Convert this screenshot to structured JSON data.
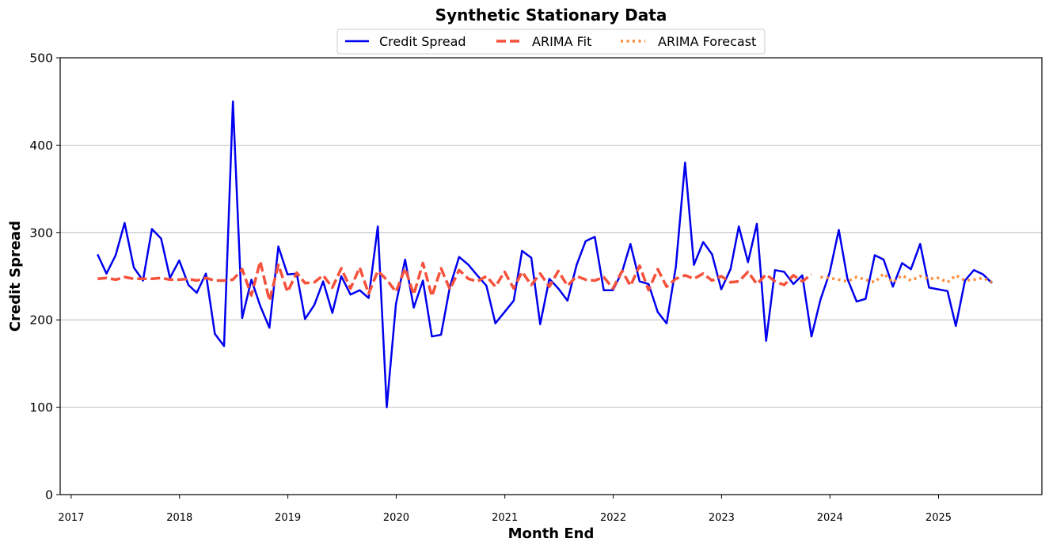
{
  "chart_data": {
    "type": "line",
    "title": "Synthetic Stationary Data",
    "xlabel": "Month End",
    "ylabel": "Credit Spread",
    "ylim": [
      0,
      500
    ],
    "yticks": [
      0,
      100,
      200,
      300,
      400,
      500
    ],
    "xlim": [
      "2016-11-25",
      "2025-12-15"
    ],
    "xticks": [
      "2017",
      "2018",
      "2019",
      "2020",
      "2021",
      "2022",
      "2023",
      "2024",
      "2025"
    ],
    "grid": "horizontal",
    "legend": "top-center",
    "series": [
      {
        "name": "Credit Spread",
        "color": "#0000ee",
        "style": "solid",
        "x": [
          "2017-03-31",
          "2017-04-30",
          "2017-05-31",
          "2017-06-30",
          "2017-07-31",
          "2017-08-31",
          "2017-09-30",
          "2017-10-31",
          "2017-11-30",
          "2017-12-31",
          "2018-01-31",
          "2018-02-28",
          "2018-03-31",
          "2018-04-30",
          "2018-05-31",
          "2018-06-30",
          "2018-07-31",
          "2018-08-31",
          "2018-09-30",
          "2018-10-31",
          "2018-11-30",
          "2018-12-31",
          "2019-01-31",
          "2019-02-28",
          "2019-03-31",
          "2019-04-30",
          "2019-05-31",
          "2019-06-30",
          "2019-07-31",
          "2019-08-31",
          "2019-09-30",
          "2019-10-31",
          "2019-11-30",
          "2019-12-31",
          "2020-01-31",
          "2020-02-29",
          "2020-03-31",
          "2020-04-30",
          "2020-05-31",
          "2020-06-30",
          "2020-07-31",
          "2020-08-31",
          "2020-09-30",
          "2020-10-31",
          "2020-11-30",
          "2020-12-31",
          "2021-01-31",
          "2021-02-28",
          "2021-03-31",
          "2021-04-30",
          "2021-05-31",
          "2021-06-30",
          "2021-07-31",
          "2021-08-31",
          "2021-09-30",
          "2021-10-31",
          "2021-11-30",
          "2021-12-31",
          "2022-01-31",
          "2022-02-28",
          "2022-03-31",
          "2022-04-30",
          "2022-05-31",
          "2022-06-30",
          "2022-07-31",
          "2022-08-31",
          "2022-09-30",
          "2022-10-31",
          "2022-11-30",
          "2022-12-31",
          "2023-01-31",
          "2023-02-28",
          "2023-03-31",
          "2023-04-30",
          "2023-05-31",
          "2023-06-30",
          "2023-07-31",
          "2023-08-31",
          "2023-09-30",
          "2023-10-31",
          "2023-11-30",
          "2023-12-31",
          "2024-01-31",
          "2024-02-29",
          "2024-03-31",
          "2024-04-30",
          "2024-05-31",
          "2024-06-30",
          "2024-07-31",
          "2024-08-31",
          "2024-09-30",
          "2024-10-31",
          "2024-11-30",
          "2024-12-31",
          "2025-01-31",
          "2025-02-28",
          "2025-03-31",
          "2025-04-30",
          "2025-05-31",
          "2025-06-30"
        ],
        "values": [
          275,
          253,
          274,
          311,
          260,
          245,
          304,
          293,
          248,
          268,
          240,
          231,
          253,
          184,
          170,
          450,
          202,
          246,
          216,
          191,
          284,
          252,
          253,
          201,
          217,
          244,
          208,
          250,
          229,
          234,
          225,
          307,
          100,
          218,
          269,
          214,
          245,
          181,
          183,
          238,
          272,
          263,
          251,
          239,
          196,
          209,
          222,
          279,
          271,
          195,
          247,
          236,
          222,
          263,
          290,
          295,
          234,
          234,
          255,
          287,
          244,
          241,
          209,
          196,
          261,
          380,
          263,
          289,
          275,
          235,
          258,
          307,
          266,
          310,
          176,
          257,
          255,
          241,
          251,
          181,
          223,
          254,
          303,
          247,
          221,
          224,
          274,
          269,
          238,
          265,
          258,
          287,
          237,
          235,
          233,
          193,
          245,
          257,
          252,
          242
        ]
      },
      {
        "name": "ARIMA Fit",
        "color": "#f5523c",
        "style": "dashed",
        "x": [
          "2017-03-31",
          "2017-04-30",
          "2017-05-31",
          "2017-06-30",
          "2017-07-31",
          "2017-08-31",
          "2017-09-30",
          "2017-10-31",
          "2017-11-30",
          "2017-12-31",
          "2018-01-31",
          "2018-02-28",
          "2018-03-31",
          "2018-04-30",
          "2018-05-31",
          "2018-06-30",
          "2018-07-31",
          "2018-08-31",
          "2018-09-30",
          "2018-10-31",
          "2018-11-30",
          "2018-12-31",
          "2019-01-31",
          "2019-02-28",
          "2019-03-31",
          "2019-04-30",
          "2019-05-31",
          "2019-06-30",
          "2019-07-31",
          "2019-08-31",
          "2019-09-30",
          "2019-10-31",
          "2019-11-30",
          "2019-12-31",
          "2020-01-31",
          "2020-02-29",
          "2020-03-31",
          "2020-04-30",
          "2020-05-31",
          "2020-06-30",
          "2020-07-31",
          "2020-08-31",
          "2020-09-30",
          "2020-10-31",
          "2020-11-30",
          "2020-12-31",
          "2021-01-31",
          "2021-02-28",
          "2021-03-31",
          "2021-04-30",
          "2021-05-31",
          "2021-06-30",
          "2021-07-31",
          "2021-08-31",
          "2021-09-30",
          "2021-10-31",
          "2021-11-30",
          "2021-12-31",
          "2022-01-31",
          "2022-02-28",
          "2022-03-31",
          "2022-04-30",
          "2022-05-31",
          "2022-06-30",
          "2022-07-31",
          "2022-08-31",
          "2022-09-30",
          "2022-10-31",
          "2022-11-30",
          "2022-12-31",
          "2023-01-31",
          "2023-02-28",
          "2023-03-31",
          "2023-04-30",
          "2023-05-31",
          "2023-06-30",
          "2023-07-31",
          "2023-08-31",
          "2023-09-30",
          "2023-10-31"
        ],
        "values": [
          247,
          248,
          246,
          249,
          247,
          247,
          247,
          248,
          246,
          246,
          247,
          245,
          248,
          245,
          245,
          246,
          258,
          228,
          267,
          222,
          263,
          232,
          254,
          242,
          243,
          251,
          237,
          259,
          236,
          260,
          230,
          256,
          246,
          232,
          259,
          229,
          265,
          227,
          259,
          235,
          257,
          247,
          244,
          250,
          238,
          255,
          236,
          255,
          240,
          253,
          238,
          256,
          239,
          250,
          246,
          245,
          249,
          236,
          256,
          239,
          262,
          234,
          258,
          238,
          247,
          251,
          247,
          253,
          245,
          250,
          243,
          244,
          255,
          241,
          252,
          244,
          240,
          251,
          244,
          252
        ]
      },
      {
        "name": "ARIMA Forecast",
        "color": "#ff8c3c",
        "style": "dotted",
        "x": [
          "2023-11-30",
          "2023-12-31",
          "2024-01-31",
          "2024-02-29",
          "2024-03-31",
          "2024-04-30",
          "2024-05-31",
          "2024-06-30",
          "2024-07-31",
          "2024-08-31",
          "2024-09-30",
          "2024-10-31",
          "2024-11-30",
          "2024-12-31",
          "2025-01-31",
          "2025-02-28",
          "2025-03-31",
          "2025-04-30",
          "2025-05-31",
          "2025-06-30"
        ],
        "values": [
          249,
          248,
          246,
          244,
          249,
          246,
          243,
          253,
          243,
          251,
          245,
          250,
          247,
          248,
          243,
          251,
          245,
          246,
          248,
          243
        ]
      }
    ]
  }
}
